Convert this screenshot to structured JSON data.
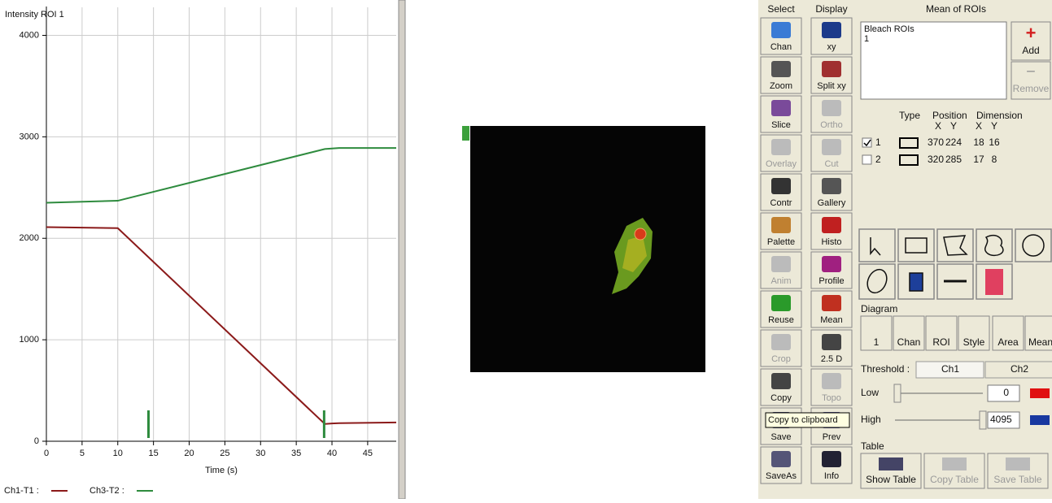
{
  "chart_data": {
    "type": "line",
    "title": "Intensity ROI 1",
    "x_label": "Time (s)",
    "x": [
      0,
      10,
      39,
      40,
      41,
      49
    ],
    "series": [
      {
        "name": "Ch1-T1 :",
        "color": "#8b1a1a",
        "values": [
          2110,
          2100,
          170,
          175,
          178,
          185
        ]
      },
      {
        "name": "Ch3-T2 :",
        "color": "#2e8b3e",
        "values": [
          2350,
          2370,
          2880,
          2885,
          2890,
          2890
        ]
      }
    ],
    "bleach_marks": [
      14.3,
      38.9
    ],
    "xlim": [
      0,
      49
    ],
    "ylim": [
      0,
      4100
    ],
    "xticks": [
      0,
      5,
      10,
      15,
      20,
      25,
      30,
      35,
      40,
      45
    ],
    "yticks": [
      0,
      1000,
      2000,
      3000,
      4000
    ],
    "grid": true
  },
  "panel": {
    "select_header": "Select",
    "display_header": "Display",
    "rois_header": "Mean of ROIs",
    "select_buttons": [
      {
        "label": "Chan"
      },
      {
        "label": "Zoom"
      },
      {
        "label": "Slice"
      },
      {
        "label": "Overlay",
        "disabled": true
      },
      {
        "label": "Contr"
      },
      {
        "label": "Palette"
      },
      {
        "label": "Anim",
        "disabled": true
      },
      {
        "label": "Reuse"
      },
      {
        "label": "Crop",
        "disabled": true
      },
      {
        "label": "Copy"
      },
      {
        "label": "Save"
      },
      {
        "label": "SaveAs"
      }
    ],
    "display_buttons": [
      {
        "label": "xy"
      },
      {
        "label": "Split xy"
      },
      {
        "label": "Ortho",
        "disabled": true
      },
      {
        "label": "Cut",
        "disabled": true
      },
      {
        "label": "Gallery"
      },
      {
        "label": "Histo"
      },
      {
        "label": "Profile"
      },
      {
        "label": "Mean"
      },
      {
        "label": "2.5 D"
      },
      {
        "label": "Topo",
        "disabled": true
      },
      {
        "label": "Prev"
      },
      {
        "label": "Info"
      }
    ],
    "tooltip": "Copy to clipboard",
    "roi_list": [
      "Bleach ROIs",
      "1"
    ],
    "add": "Add",
    "remove": "Remove",
    "table_header": {
      "type": "Type",
      "position": "Position",
      "dimension": "Dimension",
      "coords": [
        "X",
        "Y",
        "X",
        "Y"
      ]
    },
    "rois": [
      [
        1,
        370,
        224,
        18,
        16
      ],
      [
        2,
        320,
        285,
        17,
        8
      ]
    ],
    "diagram_label": "Diagram",
    "diagram_buttons": [
      "1",
      "Chan",
      "ROI",
      "Style",
      "Area",
      "Mean"
    ],
    "threshold_label": "Threshold :",
    "threshold_channels": [
      "Ch1",
      "Ch2"
    ],
    "low_label": "Low",
    "low_value": 0,
    "high_label": "High",
    "high_value": 4095,
    "table_label": "Table",
    "table_buttons": [
      "Show Table",
      "Copy Table",
      "Save Table"
    ]
  }
}
